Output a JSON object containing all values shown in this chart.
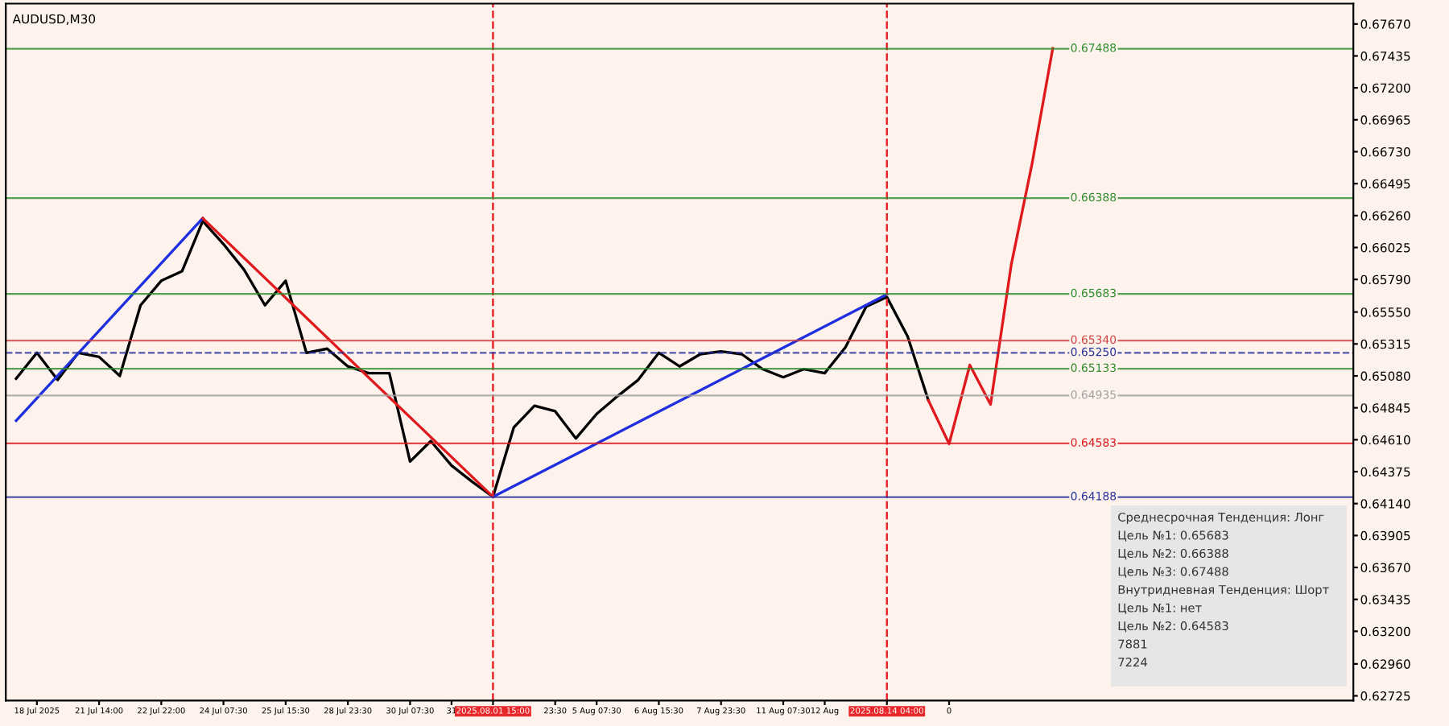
{
  "chart_data": {
    "type": "line",
    "title": "AUDUSD,M30",
    "categories": [
      null,
      "18 Jul 2025",
      null,
      null,
      "21 Jul 14:00",
      null,
      null,
      "22 Jul 22:00",
      null,
      null,
      "24 Jul 07:30",
      null,
      null,
      "25 Jul 15:30",
      null,
      null,
      "28 Jul 23:30",
      null,
      null,
      "30 Jul 07:30",
      null,
      "31",
      null,
      "2025.08.01 15:00",
      null,
      null,
      "23:30",
      null,
      "5 Aug 07:30",
      null,
      null,
      "6 Aug 15:30",
      null,
      null,
      "7 Aug 23:30",
      null,
      null,
      "11 Aug 07:30",
      null,
      "12 Aug",
      null,
      null,
      "2025.08.14 04:00",
      null,
      null,
      "0",
      null,
      null,
      null,
      null,
      null,
      null,
      null,
      null,
      null,
      null,
      null,
      null,
      null,
      null,
      null,
      null,
      null,
      null,
      null
    ],
    "ylim": [
      0.6269,
      0.6782
    ],
    "yticks": [
      {
        "value": 0.6767,
        "label": "0.67670"
      },
      {
        "value": 0.67435,
        "label": "0.67435"
      },
      {
        "value": 0.672,
        "label": "0.67200"
      },
      {
        "value": 0.66965,
        "label": "0.66965"
      },
      {
        "value": 0.6673,
        "label": "0.66730"
      },
      {
        "value": 0.66495,
        "label": "0.66495"
      },
      {
        "value": 0.6626,
        "label": "0.66260"
      },
      {
        "value": 0.66025,
        "label": "0.66025"
      },
      {
        "value": 0.6579,
        "label": "0.65790"
      },
      {
        "value": 0.6555,
        "label": "0.65550"
      },
      {
        "value": 0.65315,
        "label": "0.65315"
      },
      {
        "value": 0.6508,
        "label": "0.65080"
      },
      {
        "value": 0.64845,
        "label": "0.64845"
      },
      {
        "value": 0.6461,
        "label": "0.64610"
      },
      {
        "value": 0.64375,
        "label": "0.64375"
      },
      {
        "value": 0.6414,
        "label": "0.64140"
      },
      {
        "value": 0.63905,
        "label": "0.63905"
      },
      {
        "value": 0.6367,
        "label": "0.63670"
      },
      {
        "value": 0.63435,
        "label": "0.63435"
      },
      {
        "value": 0.632,
        "label": "0.63200"
      },
      {
        "value": 0.6296,
        "label": "0.62960"
      },
      {
        "value": 0.62725,
        "label": "0.62725"
      }
    ],
    "series": [
      {
        "color": "#000000",
        "values": [
          0.6506,
          0.6525,
          0.6505,
          0.6525,
          0.6522,
          0.6508,
          0.656,
          0.6578,
          0.6585,
          0.6622,
          0.6605,
          0.6586,
          0.656,
          0.6578,
          0.6525,
          0.6528,
          0.6515,
          0.651,
          0.651,
          0.6445,
          0.646,
          0.6442,
          0.643,
          0.6419,
          0.647,
          0.6486,
          0.6482,
          0.6462,
          0.648,
          0.6493,
          0.6505,
          0.6525,
          0.6515,
          0.6524,
          0.6526,
          0.6524,
          0.6513,
          0.6507,
          0.6513,
          0.651,
          0.6529,
          0.6559,
          0.6566,
          0.6537,
          0.649,
          null,
          null,
          null,
          null,
          null,
          null,
          null,
          null,
          null,
          null,
          null,
          null,
          null,
          null,
          null,
          null,
          null,
          null,
          null,
          null
        ]
      },
      {
        "color": "#1f2fe0",
        "values": [
          0.6475,
          null,
          null,
          null,
          null,
          null,
          null,
          null,
          null,
          0.6624,
          null,
          null,
          null,
          null,
          null,
          null,
          null,
          null,
          null,
          null,
          null,
          null,
          null,
          null,
          null,
          null,
          null,
          null,
          null,
          null,
          null,
          null,
          null,
          null,
          null,
          null,
          null,
          null,
          null,
          null,
          null,
          null,
          null,
          null,
          null,
          null,
          null,
          null,
          null,
          null,
          null,
          null,
          null,
          null,
          null,
          null,
          null,
          null,
          null,
          null,
          null,
          null,
          null,
          null,
          null
        ]
      },
      {
        "color": "#e0191e",
        "values": [
          null,
          null,
          null,
          null,
          null,
          null,
          null,
          null,
          null,
          0.6624,
          null,
          null,
          null,
          null,
          null,
          null,
          null,
          null,
          null,
          null,
          null,
          null,
          null,
          0.6419,
          null,
          null,
          null,
          null,
          null,
          null,
          null,
          null,
          null,
          null,
          null,
          null,
          null,
          null,
          null,
          null,
          null,
          null,
          null,
          null,
          null,
          null,
          null,
          null,
          null,
          null,
          null,
          null,
          null,
          null,
          null,
          null,
          null,
          null,
          null,
          null,
          null,
          null,
          null,
          null,
          null
        ]
      },
      {
        "color": "#1f2fe0",
        "values": [
          null,
          null,
          null,
          null,
          null,
          null,
          null,
          null,
          null,
          null,
          null,
          null,
          null,
          null,
          null,
          null,
          null,
          null,
          null,
          null,
          null,
          null,
          null,
          0.6419,
          null,
          null,
          null,
          null,
          null,
          null,
          null,
          null,
          null,
          null,
          null,
          null,
          null,
          null,
          null,
          null,
          null,
          null,
          0.6568,
          null,
          null,
          null,
          null,
          null,
          null,
          null,
          null,
          null,
          null,
          null,
          null,
          null,
          null,
          null,
          null,
          null,
          null,
          null,
          null,
          null,
          null
        ]
      },
      {
        "color": "#e0191e",
        "values": [
          null,
          null,
          null,
          null,
          null,
          null,
          null,
          null,
          null,
          null,
          null,
          null,
          null,
          null,
          null,
          null,
          null,
          null,
          null,
          null,
          null,
          null,
          null,
          null,
          null,
          null,
          null,
          null,
          null,
          null,
          null,
          null,
          null,
          null,
          null,
          null,
          null,
          null,
          null,
          null,
          null,
          null,
          null,
          null,
          0.649,
          0.6458,
          0.6516,
          0.6487,
          0.659,
          0.6664,
          0.6749,
          null,
          null,
          null,
          null,
          null,
          null,
          null,
          null,
          null,
          null,
          null,
          null,
          null,
          null
        ]
      }
    ],
    "ref_lines": [
      {
        "axis": "x",
        "value": "2025.08.01 15:00",
        "color": "#e8272b",
        "line_style": "dashed"
      },
      {
        "axis": "x",
        "value": "2025.08.14 04:00",
        "color": "#e8272b",
        "line_style": "dashed"
      },
      {
        "axis": "y",
        "value": 0.67488,
        "label": "0.67488",
        "color": "#2e8b2e"
      },
      {
        "axis": "y",
        "value": 0.66388,
        "label": "0.66388",
        "color": "#2e8b2e"
      },
      {
        "axis": "y",
        "value": 0.65683,
        "label": "0.65683",
        "color": "#2e8b2e"
      },
      {
        "axis": "y",
        "value": 0.6534,
        "label": "0.65340",
        "color": "#d04040"
      },
      {
        "axis": "y",
        "value": 0.6525,
        "label": "0.65250",
        "color": "#25309a",
        "line_style": "dashed"
      },
      {
        "axis": "y",
        "value": 0.65133,
        "label": "0.65133",
        "color": "#2e8b2e"
      },
      {
        "axis": "y",
        "value": 0.64935,
        "label": "0.64935",
        "color": "#a0a0a0"
      },
      {
        "axis": "y",
        "value": 0.64583,
        "label": "0.64583",
        "color": "#e0191e"
      },
      {
        "axis": "y",
        "value": 0.64188,
        "label": "0.64188",
        "color": "#25309a"
      }
    ],
    "annotations": [
      "Среднесрочная Тенденция: Лонг",
      "Цель №1: 0.65683",
      "Цель №2: 0.66388",
      "Цель №3: 0.67488",
      "Внутридневная Тенденция: Шорт",
      "Цель №1: нет",
      "Цель №2: 0.64583",
      "7881",
      "7224"
    ]
  }
}
